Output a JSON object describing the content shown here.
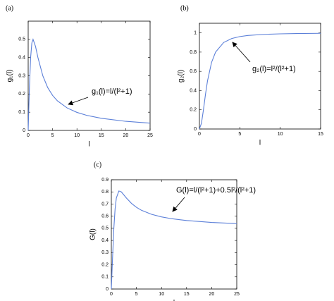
{
  "chart_data": [
    {
      "type": "line",
      "panel": "(a)",
      "x_label": "l",
      "y_label": "g₁(l)",
      "annotation": "g₁(l)=l/(l²+1)",
      "x": [
        0,
        0.25,
        0.5,
        0.75,
        1,
        1.5,
        2,
        3,
        4,
        5,
        6,
        8,
        10,
        12,
        15,
        20,
        25
      ],
      "series": [
        {
          "color": "#5b7fd8",
          "values": [
            0,
            0.2353,
            0.4,
            0.48,
            0.5,
            0.4615,
            0.4,
            0.3,
            0.2353,
            0.1923,
            0.1622,
            0.1231,
            0.099,
            0.0828,
            0.0664,
            0.0499,
            0.0399
          ]
        }
      ],
      "xlim": [
        0,
        25
      ],
      "xticks": [
        0,
        5,
        10,
        15,
        20,
        25
      ],
      "ylim": [
        0,
        0.6
      ],
      "yticks": [
        0,
        0.1,
        0.2,
        0.3,
        0.4,
        0.5
      ]
    },
    {
      "type": "line",
      "panel": "(b)",
      "x_label": "l",
      "y_label": "g₂(l)",
      "annotation": "g₂(l)=l²/(l²+1)",
      "x": [
        0,
        0.25,
        0.5,
        0.75,
        1,
        1.5,
        2,
        3,
        4,
        5,
        6,
        8,
        10,
        12,
        15
      ],
      "series": [
        {
          "color": "#5b7fd8",
          "values": [
            0,
            0.0588,
            0.2,
            0.36,
            0.5,
            0.6923,
            0.8,
            0.9,
            0.9412,
            0.9615,
            0.973,
            0.9846,
            0.9901,
            0.9931,
            0.9956
          ]
        }
      ],
      "xlim": [
        0,
        15
      ],
      "xticks": [
        0,
        5,
        10,
        15
      ],
      "ylim": [
        0,
        1.1
      ],
      "yticks": [
        0,
        0.2,
        0.4,
        0.6,
        0.8,
        1
      ]
    },
    {
      "type": "line",
      "panel": "(c)",
      "x_label": "l",
      "y_label": "G(l)",
      "annotation": "G(l)=l/(l²+1)+0.5l²/(l²+1)",
      "x": [
        0,
        0.25,
        0.5,
        0.75,
        1,
        1.5,
        2,
        3,
        4,
        5,
        6,
        8,
        10,
        12,
        15,
        20,
        25
      ],
      "series": [
        {
          "color": "#5b7fd8",
          "values": [
            0,
            0.2647,
            0.5,
            0.66,
            0.75,
            0.8077,
            0.8,
            0.75,
            0.7059,
            0.6731,
            0.6486,
            0.6154,
            0.594,
            0.5793,
            0.5642,
            0.5486,
            0.5391
          ]
        }
      ],
      "xlim": [
        0,
        25
      ],
      "xticks": [
        0,
        5,
        10,
        15,
        20,
        25
      ],
      "ylim": [
        0,
        0.9
      ],
      "yticks": [
        0,
        0.1,
        0.2,
        0.3,
        0.4,
        0.5,
        0.6,
        0.7,
        0.8,
        0.9
      ]
    }
  ]
}
